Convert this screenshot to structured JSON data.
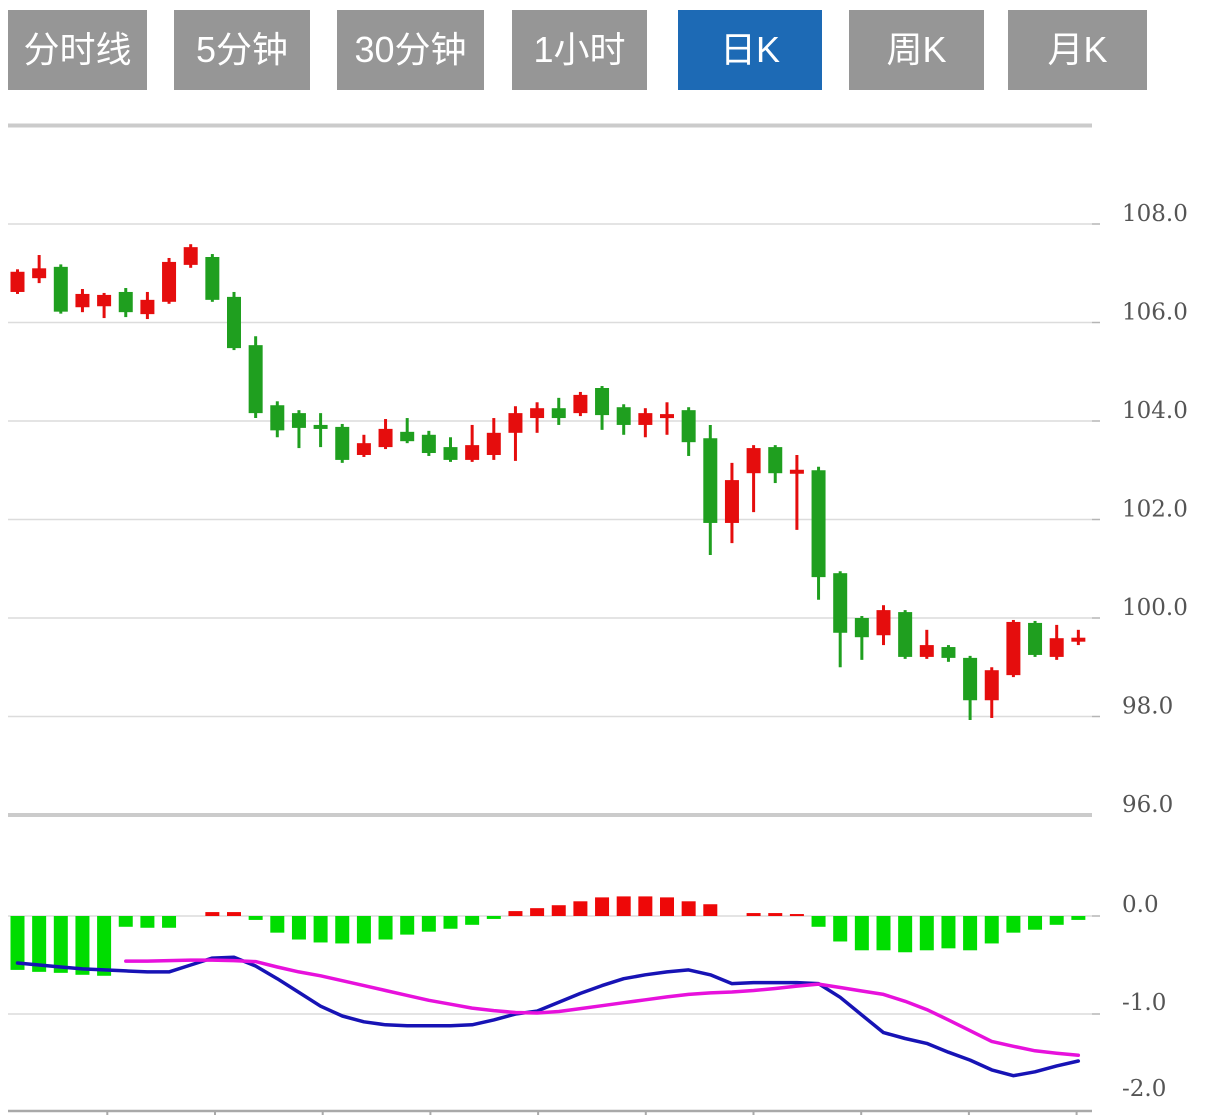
{
  "toolbar": {
    "buttons": [
      {
        "label": "分时线",
        "active": false
      },
      {
        "label": "5分钟",
        "active": false
      },
      {
        "label": "30分钟",
        "active": false
      },
      {
        "label": "1小时",
        "active": false
      },
      {
        "label": "日K",
        "active": true
      },
      {
        "label": "周K",
        "active": false
      },
      {
        "label": "月K",
        "active": false
      }
    ],
    "colors": {
      "inactive_bg": "#969696",
      "active_bg": "#1d6ab5",
      "text": "#ffffff"
    }
  },
  "chart_data": {
    "type": "candlestick",
    "title": "",
    "legend_position": "none",
    "grid": "horizontal-only",
    "y_axis_side": "right",
    "colors": {
      "up": "#e50d0d",
      "down": "#1f9f1f",
      "macd_up": "#ee0808",
      "macd_down": "#00dd00",
      "dif_line": "#1713b5",
      "dea_line": "#e711dc",
      "grid_line": "#dcdcdc",
      "panel_border": "#cbcbcb",
      "axis_line": "#a9a9a9",
      "tick": "#b5b5b5",
      "axis_text": "#555555"
    },
    "main_panel": {
      "ylim": [
        95.4,
        110.0
      ],
      "unlabeled_top_gridline": 110.0,
      "yticks": [
        {
          "label": "108.0",
          "value": 108.0
        },
        {
          "label": "106.0",
          "value": 106.0
        },
        {
          "label": "104.0",
          "value": 104.0
        },
        {
          "label": "102.0",
          "value": 102.0
        },
        {
          "label": "100.0",
          "value": 100.0
        },
        {
          "label": "98.0",
          "value": 98.0
        },
        {
          "label": "96.0",
          "value": 96.0
        }
      ],
      "candles": [
        {
          "o": 106.62,
          "h": 107.08,
          "l": 106.58,
          "c": 107.03
        },
        {
          "o": 106.9,
          "h": 107.37,
          "l": 106.8,
          "c": 107.1
        },
        {
          "o": 107.13,
          "h": 107.18,
          "l": 106.18,
          "c": 106.22
        },
        {
          "o": 106.31,
          "h": 106.68,
          "l": 106.21,
          "c": 106.58
        },
        {
          "o": 106.33,
          "h": 106.6,
          "l": 106.09,
          "c": 106.56
        },
        {
          "o": 106.62,
          "h": 106.7,
          "l": 106.11,
          "c": 106.21
        },
        {
          "o": 106.17,
          "h": 106.62,
          "l": 106.07,
          "c": 106.46
        },
        {
          "o": 106.42,
          "h": 107.31,
          "l": 106.38,
          "c": 107.23
        },
        {
          "o": 107.17,
          "h": 107.59,
          "l": 107.11,
          "c": 107.53
        },
        {
          "o": 107.33,
          "h": 107.39,
          "l": 106.42,
          "c": 106.46
        },
        {
          "o": 106.52,
          "h": 106.62,
          "l": 105.44,
          "c": 105.48
        },
        {
          "o": 105.54,
          "h": 105.72,
          "l": 104.06,
          "c": 104.16
        },
        {
          "o": 104.32,
          "h": 104.4,
          "l": 103.67,
          "c": 103.81
        },
        {
          "o": 104.16,
          "h": 104.22,
          "l": 103.45,
          "c": 103.86
        },
        {
          "o": 103.92,
          "h": 104.16,
          "l": 103.47,
          "c": 103.84
        },
        {
          "o": 103.88,
          "h": 103.94,
          "l": 103.15,
          "c": 103.21
        },
        {
          "o": 103.31,
          "h": 103.72,
          "l": 103.27,
          "c": 103.55
        },
        {
          "o": 103.47,
          "h": 104.04,
          "l": 103.43,
          "c": 103.84
        },
        {
          "o": 103.78,
          "h": 104.06,
          "l": 103.55,
          "c": 103.59
        },
        {
          "o": 103.72,
          "h": 103.8,
          "l": 103.29,
          "c": 103.35
        },
        {
          "o": 103.47,
          "h": 103.67,
          "l": 103.17,
          "c": 103.21
        },
        {
          "o": 103.21,
          "h": 103.92,
          "l": 103.17,
          "c": 103.51
        },
        {
          "o": 103.31,
          "h": 104.06,
          "l": 103.21,
          "c": 103.76
        },
        {
          "o": 103.76,
          "h": 104.3,
          "l": 103.19,
          "c": 104.16
        },
        {
          "o": 104.06,
          "h": 104.38,
          "l": 103.76,
          "c": 104.26
        },
        {
          "o": 104.26,
          "h": 104.47,
          "l": 103.92,
          "c": 104.06
        },
        {
          "o": 104.16,
          "h": 104.59,
          "l": 104.1,
          "c": 104.53
        },
        {
          "o": 104.67,
          "h": 104.71,
          "l": 103.82,
          "c": 104.12
        },
        {
          "o": 104.28,
          "h": 104.34,
          "l": 103.72,
          "c": 103.92
        },
        {
          "o": 103.92,
          "h": 104.26,
          "l": 103.67,
          "c": 104.16
        },
        {
          "o": 104.08,
          "h": 104.38,
          "l": 103.72,
          "c": 104.14
        },
        {
          "o": 104.22,
          "h": 104.28,
          "l": 103.29,
          "c": 103.57
        },
        {
          "o": 103.65,
          "h": 103.92,
          "l": 101.28,
          "c": 101.93
        },
        {
          "o": 101.93,
          "h": 103.15,
          "l": 101.52,
          "c": 102.8
        },
        {
          "o": 102.94,
          "h": 103.51,
          "l": 102.15,
          "c": 103.45
        },
        {
          "o": 103.47,
          "h": 103.51,
          "l": 102.74,
          "c": 102.94
        },
        {
          "o": 102.95,
          "h": 103.31,
          "l": 101.79,
          "c": 103.01
        },
        {
          "o": 103.0,
          "h": 103.07,
          "l": 100.37,
          "c": 100.83
        },
        {
          "o": 100.91,
          "h": 100.95,
          "l": 99.0,
          "c": 99.7
        },
        {
          "o": 100.0,
          "h": 100.04,
          "l": 99.15,
          "c": 99.61
        },
        {
          "o": 99.65,
          "h": 100.26,
          "l": 99.45,
          "c": 100.16
        },
        {
          "o": 100.12,
          "h": 100.16,
          "l": 99.17,
          "c": 99.21
        },
        {
          "o": 99.21,
          "h": 99.76,
          "l": 99.17,
          "c": 99.45
        },
        {
          "o": 99.41,
          "h": 99.45,
          "l": 99.11,
          "c": 99.19
        },
        {
          "o": 99.19,
          "h": 99.23,
          "l": 97.93,
          "c": 98.33
        },
        {
          "o": 98.33,
          "h": 99.0,
          "l": 97.97,
          "c": 98.94
        },
        {
          "o": 98.84,
          "h": 99.96,
          "l": 98.8,
          "c": 99.92
        },
        {
          "o": 99.9,
          "h": 99.94,
          "l": 99.21,
          "c": 99.25
        },
        {
          "o": 99.21,
          "h": 99.86,
          "l": 99.15,
          "c": 99.59
        },
        {
          "o": 99.52,
          "h": 99.76,
          "l": 99.45,
          "c": 99.6
        }
      ]
    },
    "macd_panel": {
      "ylim": [
        -2.0,
        0.3
      ],
      "yticks": [
        {
          "label": "0.0",
          "value": 0.0
        },
        {
          "label": "-1.0",
          "value": -1.0
        },
        {
          "label": "-2.0",
          "value": -2.0
        }
      ],
      "histogram": [
        -0.55,
        -0.57,
        -0.58,
        -0.6,
        -0.61,
        -0.11,
        -0.12,
        -0.12,
        0,
        0.04,
        0.04,
        -0.04,
        -0.17,
        -0.24,
        -0.27,
        -0.28,
        -0.28,
        -0.24,
        -0.19,
        -0.16,
        -0.13,
        -0.09,
        -0.03,
        0.05,
        0.08,
        0.11,
        0.15,
        0.19,
        0.2,
        0.2,
        0.19,
        0.15,
        0.12,
        0,
        0.03,
        0.03,
        0.02,
        -0.11,
        -0.26,
        -0.35,
        -0.35,
        -0.37,
        -0.35,
        -0.33,
        -0.35,
        -0.28,
        -0.17,
        -0.14,
        -0.09,
        -0.04
      ],
      "dif": [
        -0.48,
        -0.5,
        -0.52,
        -0.54,
        -0.55,
        -0.56,
        -0.57,
        -0.57,
        -0.5,
        -0.43,
        -0.42,
        -0.51,
        -0.64,
        -0.78,
        -0.92,
        -1.02,
        -1.08,
        -1.11,
        -1.12,
        -1.12,
        -1.12,
        -1.11,
        -1.06,
        -1.0,
        -0.97,
        -0.88,
        -0.79,
        -0.71,
        -0.64,
        -0.6,
        -0.57,
        -0.55,
        -0.6,
        -0.69,
        -0.68,
        -0.68,
        -0.68,
        -0.69,
        -0.83,
        -1.01,
        -1.19,
        -1.25,
        -1.3,
        -1.39,
        -1.47,
        -1.57,
        -1.63,
        -1.59,
        -1.53,
        -1.48
      ],
      "dea": [
        null,
        null,
        null,
        null,
        null,
        -0.46,
        -0.46,
        -0.455,
        -0.45,
        -0.45,
        -0.455,
        -0.465,
        -0.52,
        -0.57,
        -0.61,
        -0.66,
        -0.71,
        -0.76,
        -0.81,
        -0.86,
        -0.9,
        -0.94,
        -0.965,
        -0.985,
        -0.99,
        -0.975,
        -0.945,
        -0.915,
        -0.885,
        -0.855,
        -0.825,
        -0.8,
        -0.785,
        -0.775,
        -0.76,
        -0.74,
        -0.715,
        -0.695,
        -0.73,
        -0.765,
        -0.8,
        -0.87,
        -0.955,
        -1.06,
        -1.17,
        -1.28,
        -1.33,
        -1.375,
        -1.4,
        -1.42
      ],
      "x_axis_tick_count": 10
    }
  }
}
